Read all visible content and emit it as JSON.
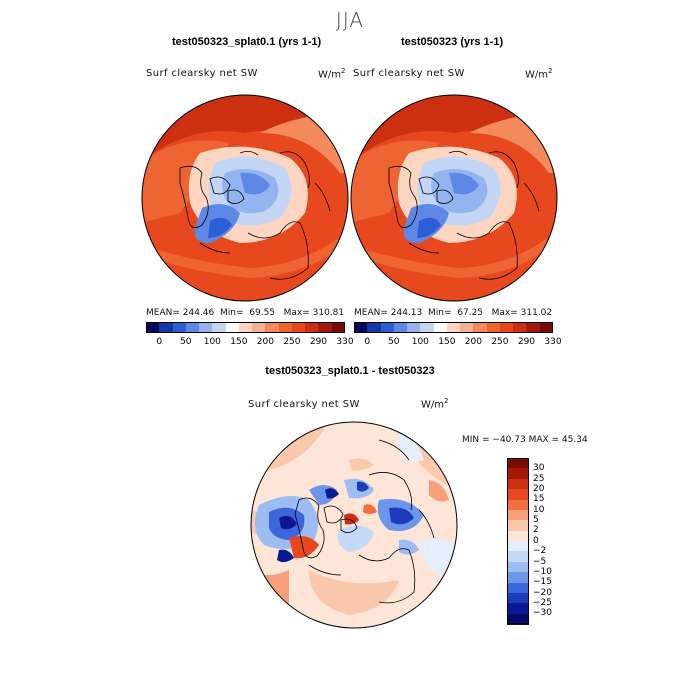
{
  "season": "JJA",
  "panels": [
    {
      "title": "test050323_splat0.1 (yrs 1-1)",
      "field": "Surf clearsky net SW",
      "unit": "W/m",
      "unit_exp": "2",
      "stats": {
        "mean_label": "MEAN=",
        "mean": "244.46",
        "min_label": "Min=",
        "min": "69.55",
        "max_label": "Max=",
        "max": "310.81"
      }
    },
    {
      "title": "test050323 (yrs 1-1)",
      "field": "Surf clearsky net SW",
      "unit": "W/m",
      "unit_exp": "2",
      "stats": {
        "mean_label": "MEAN=",
        "mean": "244.13",
        "min_label": "Min=",
        "min": "67.25",
        "max_label": "Max=",
        "max": "311.02"
      }
    }
  ],
  "diff": {
    "title": "test050323_splat0.1 - test050323",
    "field": "Surf clearsky net SW",
    "unit": "W/m",
    "unit_exp": "2",
    "stats_text": "MIN = −40.73 MAX =  45.34"
  },
  "chart_data": [
    {
      "type": "heatmap",
      "projection": "north-polar-stereographic",
      "title": "test050323_splat0.1 (yrs 1-1)",
      "variable": "Surf clearsky net SW",
      "units": "W/m2",
      "mean": 244.46,
      "min": 69.55,
      "max": 310.81,
      "colorbar_levels": [
        0,
        50,
        100,
        150,
        200,
        250,
        290,
        330
      ],
      "colorbar_colors": [
        "#08085c",
        "#1438a8",
        "#2c5ed6",
        "#5e88e6",
        "#94b4f0",
        "#c4d6f6",
        "#ffffff",
        "#fcd6c0",
        "#f8b08c",
        "#f48a5c",
        "#ee6432",
        "#e8481e",
        "#cc3010",
        "#a41808",
        "#7a0a04"
      ],
      "legend_position": "bottom"
    },
    {
      "type": "heatmap",
      "projection": "north-polar-stereographic",
      "title": "test050323 (yrs 1-1)",
      "variable": "Surf clearsky net SW",
      "units": "W/m2",
      "mean": 244.13,
      "min": 67.25,
      "max": 311.02,
      "colorbar_levels": [
        0,
        50,
        100,
        150,
        200,
        250,
        290,
        330
      ],
      "colorbar_colors": [
        "#08085c",
        "#1438a8",
        "#2c5ed6",
        "#5e88e6",
        "#94b4f0",
        "#c4d6f6",
        "#ffffff",
        "#fcd6c0",
        "#f8b08c",
        "#f48a5c",
        "#ee6432",
        "#e8481e",
        "#cc3010",
        "#a41808",
        "#7a0a04"
      ],
      "legend_position": "bottom"
    },
    {
      "type": "heatmap",
      "projection": "north-polar-stereographic",
      "title": "test050323_splat0.1 - test050323",
      "variable": "Surf clearsky net SW",
      "units": "W/m2",
      "min": -40.73,
      "max": 45.34,
      "colorbar_levels": [
        30,
        25,
        20,
        15,
        10,
        5,
        2,
        0,
        -2,
        -5,
        -10,
        -15,
        -20,
        -25,
        -30
      ],
      "colorbar_colors": [
        "#7a0a04",
        "#a41808",
        "#cc3010",
        "#e8481e",
        "#f27040",
        "#f8a07c",
        "#fcc8ac",
        "#fde6d8",
        "#e4eefc",
        "#c4d8f8",
        "#9cbcf2",
        "#6c96ea",
        "#3c66dc",
        "#1c3cbc",
        "#0a1896",
        "#040a68"
      ],
      "legend_position": "right"
    }
  ]
}
